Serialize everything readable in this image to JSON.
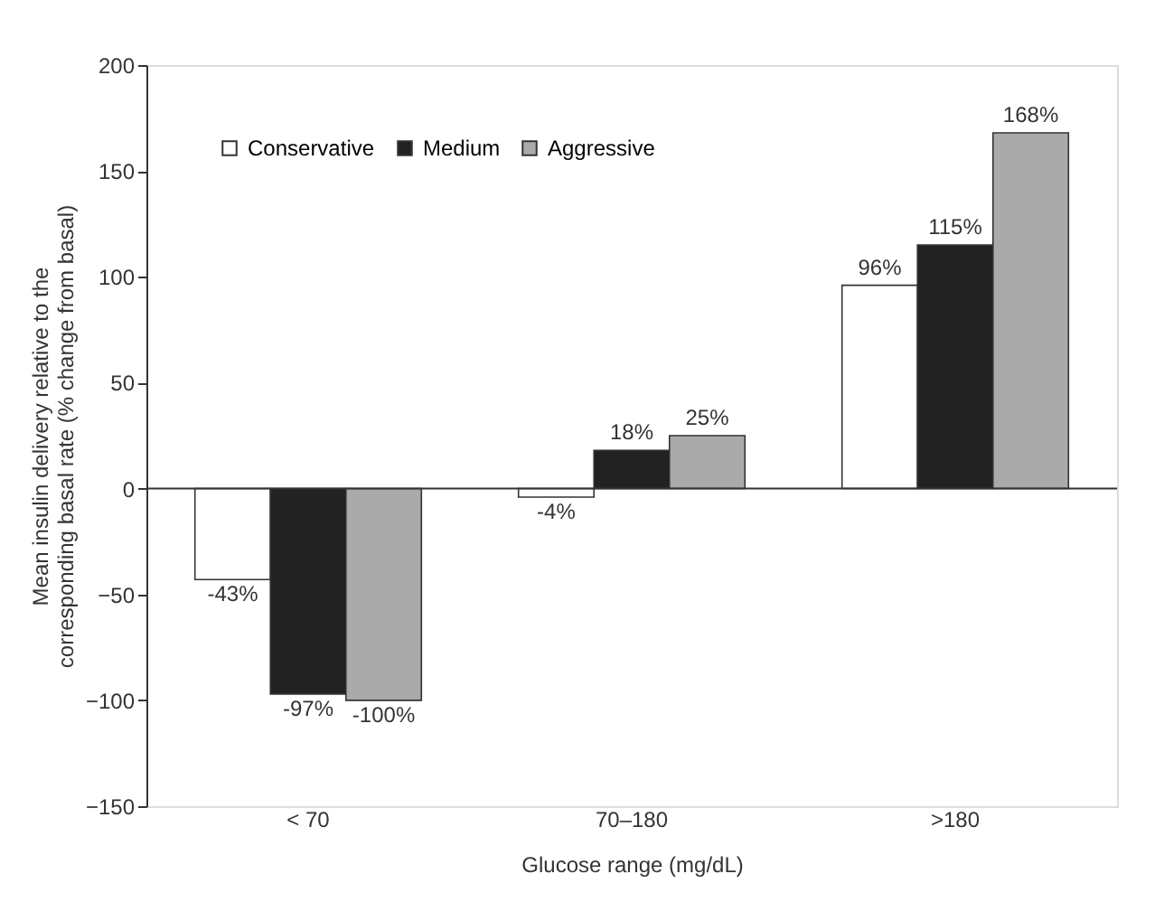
{
  "chart_data": {
    "type": "bar",
    "xlabel": "Glucose range (mg/dL)",
    "ylabel": "Mean insulin delivery relative to the corresponding basal rate (% change from basal)",
    "categories": [
      "< 70",
      "70–180",
      ">180"
    ],
    "series": [
      {
        "name": "Conservative",
        "color": "#ffffff",
        "values": [
          -43,
          -4,
          96
        ],
        "value_labels": [
          "-43%",
          "-4%",
          "96%"
        ]
      },
      {
        "name": "Medium",
        "color": "#222222",
        "values": [
          -97,
          18,
          115
        ],
        "value_labels": [
          "-97%",
          "18%",
          "115%"
        ]
      },
      {
        "name": "Aggressive",
        "color": "#aaaaaa",
        "values": [
          -100,
          25,
          168
        ],
        "value_labels": [
          "-100%",
          "25%",
          "168%"
        ]
      }
    ],
    "ylim": [
      -150,
      200
    ],
    "yticks": [
      -150,
      -100,
      -50,
      0,
      50,
      100,
      150,
      200
    ],
    "ref_lines": [
      {
        "axis": "y",
        "value": 0
      }
    ],
    "grid": false,
    "legend": "top left"
  }
}
